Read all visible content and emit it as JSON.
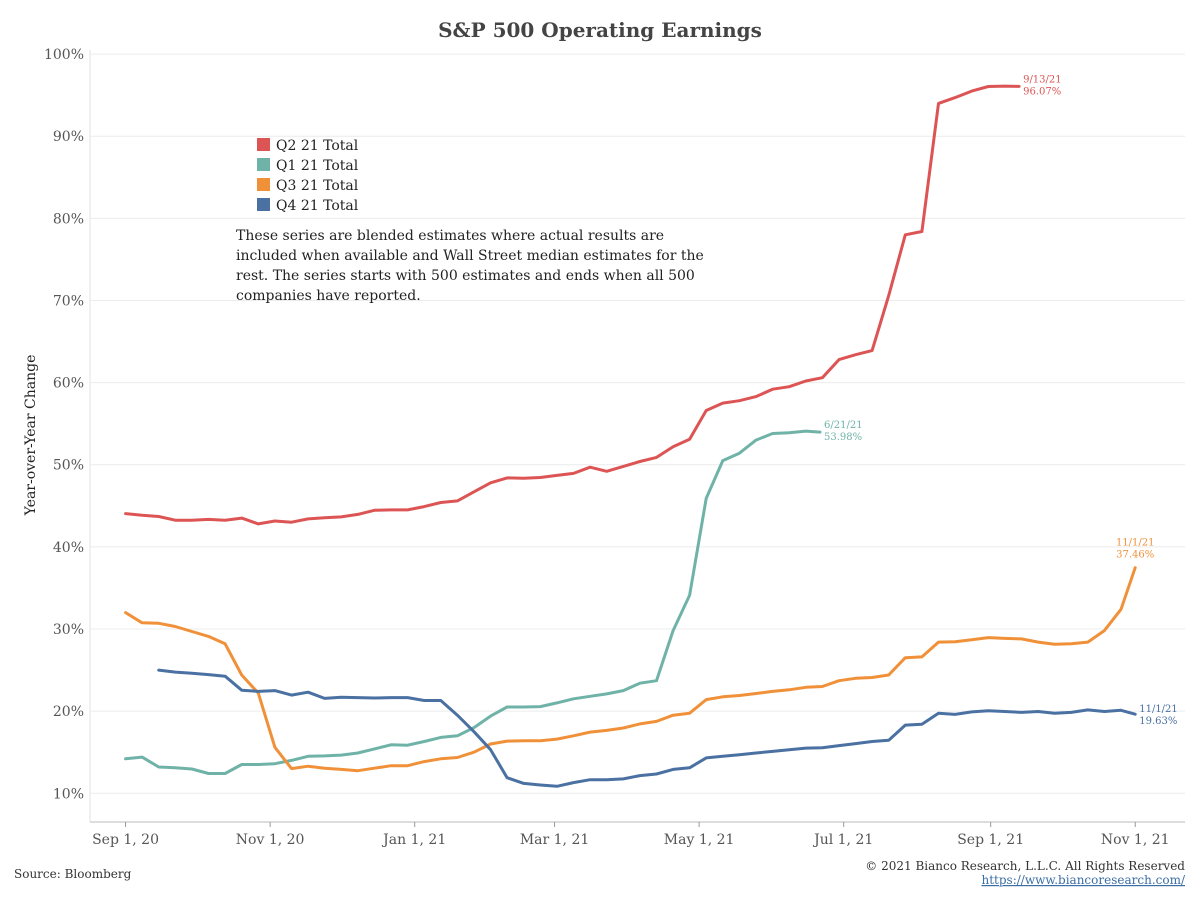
{
  "chart_data": {
    "type": "line",
    "title": "S&P 500 Operating Earnings",
    "ylabel": "Year-over-Year Change",
    "xlabel": "",
    "ylim": [
      0.065,
      1.005
    ],
    "x_range": [
      "2020-08-17",
      "2021-11-22"
    ],
    "y_ticks": [
      {
        "value": 0.1,
        "label": "10%"
      },
      {
        "value": 0.2,
        "label": "20%"
      },
      {
        "value": 0.3,
        "label": "30%"
      },
      {
        "value": 0.4,
        "label": "40%"
      },
      {
        "value": 0.5,
        "label": "50%"
      },
      {
        "value": 0.6,
        "label": "60%"
      },
      {
        "value": 0.7,
        "label": "70%"
      },
      {
        "value": 0.8,
        "label": "80%"
      },
      {
        "value": 0.9,
        "label": "90%"
      },
      {
        "value": 1.0,
        "label": "100%"
      }
    ],
    "x_ticks": [
      {
        "date": "2020-09-01",
        "label": "Sep 1, 20"
      },
      {
        "date": "2020-11-01",
        "label": "Nov 1, 20"
      },
      {
        "date": "2021-01-01",
        "label": "Jan 1, 21"
      },
      {
        "date": "2021-03-01",
        "label": "Mar 1, 21"
      },
      {
        "date": "2021-05-01",
        "label": "May 1, 21"
      },
      {
        "date": "2021-07-01",
        "label": "Jul 1, 21"
      },
      {
        "date": "2021-09-01",
        "label": "Sep 1, 21"
      },
      {
        "date": "2021-11-01",
        "label": "Nov 1, 21"
      }
    ],
    "grid": true,
    "legend_position": "top-left",
    "series": [
      {
        "name": "Q2 21 Total",
        "color": "#dc5454",
        "end_label": {
          "date": "9/13/21",
          "value": "96.07%"
        },
        "points": [
          [
            "2020-09-01",
            0.4405
          ],
          [
            "2020-09-08",
            0.4385
          ],
          [
            "2020-09-15",
            0.437
          ],
          [
            "2020-09-22",
            0.4325
          ],
          [
            "2020-09-29",
            0.4325
          ],
          [
            "2020-10-06",
            0.4335
          ],
          [
            "2020-10-13",
            0.4325
          ],
          [
            "2020-10-20",
            0.435
          ],
          [
            "2020-10-27",
            0.428
          ],
          [
            "2020-11-03",
            0.4315
          ],
          [
            "2020-11-10",
            0.43
          ],
          [
            "2020-11-17",
            0.434
          ],
          [
            "2020-11-24",
            0.4355
          ],
          [
            "2020-12-01",
            0.4365
          ],
          [
            "2020-12-08",
            0.4395
          ],
          [
            "2020-12-15",
            0.4445
          ],
          [
            "2020-12-22",
            0.445
          ],
          [
            "2020-12-29",
            0.445
          ],
          [
            "2021-01-05",
            0.449
          ],
          [
            "2021-01-12",
            0.454
          ],
          [
            "2021-01-19",
            0.456
          ],
          [
            "2021-01-26",
            0.467
          ],
          [
            "2021-02-02",
            0.478
          ],
          [
            "2021-02-09",
            0.484
          ],
          [
            "2021-02-16",
            0.4835
          ],
          [
            "2021-02-23",
            0.4845
          ],
          [
            "2021-03-02",
            0.487
          ],
          [
            "2021-03-09",
            0.4895
          ],
          [
            "2021-03-16",
            0.497
          ],
          [
            "2021-03-23",
            0.492
          ],
          [
            "2021-03-30",
            0.498
          ],
          [
            "2021-04-06",
            0.504
          ],
          [
            "2021-04-13",
            0.509
          ],
          [
            "2021-04-20",
            0.522
          ],
          [
            "2021-04-27",
            0.531
          ],
          [
            "2021-05-04",
            0.566
          ],
          [
            "2021-05-11",
            0.575
          ],
          [
            "2021-05-18",
            0.578
          ],
          [
            "2021-05-25",
            0.583
          ],
          [
            "2021-06-01",
            0.592
          ],
          [
            "2021-06-08",
            0.595
          ],
          [
            "2021-06-15",
            0.602
          ],
          [
            "2021-06-22",
            0.606
          ],
          [
            "2021-06-29",
            0.628
          ],
          [
            "2021-07-06",
            0.634
          ],
          [
            "2021-07-13",
            0.639
          ],
          [
            "2021-07-20",
            0.706
          ],
          [
            "2021-07-27",
            0.78
          ],
          [
            "2021-08-03",
            0.784
          ],
          [
            "2021-08-10",
            0.94
          ],
          [
            "2021-08-17",
            0.947
          ],
          [
            "2021-08-24",
            0.955
          ],
          [
            "2021-08-31",
            0.9605
          ],
          [
            "2021-09-07",
            0.961
          ],
          [
            "2021-09-13",
            0.9607
          ]
        ]
      },
      {
        "name": "Q1 21 Total",
        "color": "#6fb3a8",
        "end_label": {
          "date": "6/21/21",
          "value": "53.98%"
        },
        "points": [
          [
            "2020-09-01",
            0.142
          ],
          [
            "2020-09-08",
            0.144
          ],
          [
            "2020-09-15",
            0.132
          ],
          [
            "2020-09-22",
            0.131
          ],
          [
            "2020-09-29",
            0.1295
          ],
          [
            "2020-10-06",
            0.124
          ],
          [
            "2020-10-13",
            0.124
          ],
          [
            "2020-10-20",
            0.135
          ],
          [
            "2020-10-27",
            0.135
          ],
          [
            "2020-11-03",
            0.136
          ],
          [
            "2020-11-10",
            0.14
          ],
          [
            "2020-11-17",
            0.145
          ],
          [
            "2020-11-24",
            0.1455
          ],
          [
            "2020-12-01",
            0.1465
          ],
          [
            "2020-12-08",
            0.149
          ],
          [
            "2020-12-15",
            0.154
          ],
          [
            "2020-12-22",
            0.159
          ],
          [
            "2020-12-29",
            0.1585
          ],
          [
            "2021-01-05",
            0.163
          ],
          [
            "2021-01-12",
            0.168
          ],
          [
            "2021-01-19",
            0.17
          ],
          [
            "2021-01-26",
            0.18
          ],
          [
            "2021-02-02",
            0.194
          ],
          [
            "2021-02-09",
            0.205
          ],
          [
            "2021-02-16",
            0.205
          ],
          [
            "2021-02-23",
            0.2055
          ],
          [
            "2021-03-02",
            0.21
          ],
          [
            "2021-03-09",
            0.215
          ],
          [
            "2021-03-16",
            0.218
          ],
          [
            "2021-03-23",
            0.221
          ],
          [
            "2021-03-30",
            0.225
          ],
          [
            "2021-04-06",
            0.234
          ],
          [
            "2021-04-13",
            0.237
          ],
          [
            "2021-04-20",
            0.298
          ],
          [
            "2021-04-27",
            0.341
          ],
          [
            "2021-05-04",
            0.459
          ],
          [
            "2021-05-11",
            0.505
          ],
          [
            "2021-05-18",
            0.514
          ],
          [
            "2021-05-25",
            0.53
          ],
          [
            "2021-06-01",
            0.538
          ],
          [
            "2021-06-08",
            0.539
          ],
          [
            "2021-06-15",
            0.541
          ],
          [
            "2021-06-21",
            0.5398
          ]
        ]
      },
      {
        "name": "Q3 21 Total",
        "color": "#f0913a",
        "end_label": {
          "date": "11/1/21",
          "value": "37.46%"
        },
        "points": [
          [
            "2020-09-01",
            0.32
          ],
          [
            "2020-09-08",
            0.3075
          ],
          [
            "2020-09-15",
            0.307
          ],
          [
            "2020-09-22",
            0.303
          ],
          [
            "2020-09-29",
            0.297
          ],
          [
            "2020-10-06",
            0.291
          ],
          [
            "2020-10-13",
            0.282
          ],
          [
            "2020-10-20",
            0.244
          ],
          [
            "2020-10-27",
            0.222
          ],
          [
            "2020-11-03",
            0.156
          ],
          [
            "2020-11-10",
            0.13
          ],
          [
            "2020-11-17",
            0.133
          ],
          [
            "2020-11-24",
            0.1305
          ],
          [
            "2020-12-01",
            0.129
          ],
          [
            "2020-12-08",
            0.1275
          ],
          [
            "2020-12-15",
            0.1305
          ],
          [
            "2020-12-22",
            0.1335
          ],
          [
            "2020-12-29",
            0.1335
          ],
          [
            "2021-01-05",
            0.1385
          ],
          [
            "2021-01-12",
            0.142
          ],
          [
            "2021-01-19",
            0.1435
          ],
          [
            "2021-01-26",
            0.15
          ],
          [
            "2021-02-02",
            0.16
          ],
          [
            "2021-02-09",
            0.1635
          ],
          [
            "2021-02-16",
            0.164
          ],
          [
            "2021-02-23",
            0.164
          ],
          [
            "2021-03-02",
            0.166
          ],
          [
            "2021-03-09",
            0.17
          ],
          [
            "2021-03-16",
            0.1745
          ],
          [
            "2021-03-23",
            0.1765
          ],
          [
            "2021-03-30",
            0.1795
          ],
          [
            "2021-04-06",
            0.1845
          ],
          [
            "2021-04-13",
            0.1875
          ],
          [
            "2021-04-20",
            0.195
          ],
          [
            "2021-04-27",
            0.1975
          ],
          [
            "2021-05-04",
            0.214
          ],
          [
            "2021-05-11",
            0.2175
          ],
          [
            "2021-05-18",
            0.219
          ],
          [
            "2021-05-25",
            0.2215
          ],
          [
            "2021-06-01",
            0.224
          ],
          [
            "2021-06-08",
            0.226
          ],
          [
            "2021-06-15",
            0.229
          ],
          [
            "2021-06-22",
            0.23
          ],
          [
            "2021-06-29",
            0.237
          ],
          [
            "2021-07-06",
            0.24
          ],
          [
            "2021-07-13",
            0.241
          ],
          [
            "2021-07-20",
            0.244
          ],
          [
            "2021-07-27",
            0.265
          ],
          [
            "2021-08-03",
            0.266
          ],
          [
            "2021-08-10",
            0.284
          ],
          [
            "2021-08-17",
            0.2845
          ],
          [
            "2021-08-24",
            0.287
          ],
          [
            "2021-08-31",
            0.2895
          ],
          [
            "2021-09-07",
            0.2885
          ],
          [
            "2021-09-14",
            0.288
          ],
          [
            "2021-09-21",
            0.284
          ],
          [
            "2021-09-28",
            0.2815
          ],
          [
            "2021-10-05",
            0.282
          ],
          [
            "2021-10-12",
            0.284
          ],
          [
            "2021-10-19",
            0.298
          ],
          [
            "2021-10-26",
            0.324
          ],
          [
            "2021-11-01",
            0.3746
          ]
        ]
      },
      {
        "name": "Q4 21 Total",
        "color": "#4a71a2",
        "end_label": {
          "date": "11/1/21",
          "value": "19.63%"
        },
        "points": [
          [
            "2020-09-15",
            0.25
          ],
          [
            "2020-09-22",
            0.2475
          ],
          [
            "2020-09-29",
            0.246
          ],
          [
            "2020-10-06",
            0.2445
          ],
          [
            "2020-10-13",
            0.2425
          ],
          [
            "2020-10-20",
            0.2255
          ],
          [
            "2020-10-27",
            0.224
          ],
          [
            "2020-11-03",
            0.225
          ],
          [
            "2020-11-10",
            0.2195
          ],
          [
            "2020-11-17",
            0.223
          ],
          [
            "2020-11-24",
            0.2155
          ],
          [
            "2020-12-01",
            0.217
          ],
          [
            "2020-12-08",
            0.2165
          ],
          [
            "2020-12-15",
            0.216
          ],
          [
            "2020-12-22",
            0.2165
          ],
          [
            "2020-12-29",
            0.2165
          ],
          [
            "2021-01-05",
            0.213
          ],
          [
            "2021-01-12",
            0.213
          ],
          [
            "2021-01-19",
            0.195
          ],
          [
            "2021-01-26",
            0.175
          ],
          [
            "2021-02-02",
            0.153
          ],
          [
            "2021-02-09",
            0.119
          ],
          [
            "2021-02-16",
            0.112
          ],
          [
            "2021-02-23",
            0.11
          ],
          [
            "2021-03-02",
            0.1085
          ],
          [
            "2021-03-09",
            0.113
          ],
          [
            "2021-03-16",
            0.1165
          ],
          [
            "2021-03-23",
            0.1165
          ],
          [
            "2021-03-30",
            0.1175
          ],
          [
            "2021-04-06",
            0.1215
          ],
          [
            "2021-04-13",
            0.1235
          ],
          [
            "2021-04-20",
            0.129
          ],
          [
            "2021-04-27",
            0.131
          ],
          [
            "2021-05-04",
            0.143
          ],
          [
            "2021-05-11",
            0.145
          ],
          [
            "2021-05-18",
            0.147
          ],
          [
            "2021-05-25",
            0.149
          ],
          [
            "2021-06-01",
            0.151
          ],
          [
            "2021-06-08",
            0.153
          ],
          [
            "2021-06-15",
            0.155
          ],
          [
            "2021-06-22",
            0.1555
          ],
          [
            "2021-06-29",
            0.158
          ],
          [
            "2021-07-06",
            0.1605
          ],
          [
            "2021-07-13",
            0.163
          ],
          [
            "2021-07-20",
            0.1645
          ],
          [
            "2021-07-27",
            0.183
          ],
          [
            "2021-08-03",
            0.184
          ],
          [
            "2021-08-10",
            0.1975
          ],
          [
            "2021-08-17",
            0.196
          ],
          [
            "2021-08-24",
            0.199
          ],
          [
            "2021-08-31",
            0.2005
          ],
          [
            "2021-09-07",
            0.1995
          ],
          [
            "2021-09-14",
            0.1985
          ],
          [
            "2021-09-21",
            0.1995
          ],
          [
            "2021-09-28",
            0.1975
          ],
          [
            "2021-10-05",
            0.1985
          ],
          [
            "2021-10-12",
            0.2015
          ],
          [
            "2021-10-19",
            0.1995
          ],
          [
            "2021-10-26",
            0.201
          ],
          [
            "2021-11-01",
            0.1963
          ]
        ]
      }
    ],
    "annotation": [
      "These series are blended estimates where actual results are",
      "included when available and Wall Street median estimates for the",
      "rest.  The series starts with 500 estimates and ends when all 500",
      "companies have reported."
    ]
  },
  "footer": {
    "source": "Source: Bloomberg",
    "copyright": "© 2021 Bianco Research, L.L.C. All Rights Reserved",
    "url": "https://www.biancoresearch.com/"
  }
}
